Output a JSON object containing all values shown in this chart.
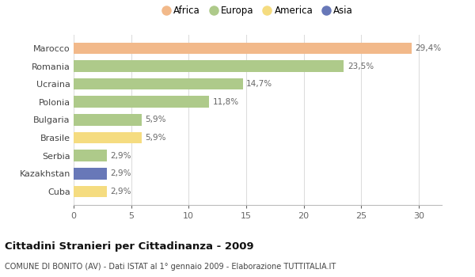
{
  "categories": [
    "Marocco",
    "Romania",
    "Ucraina",
    "Polonia",
    "Bulgaria",
    "Brasile",
    "Serbia",
    "Kazakhstan",
    "Cuba"
  ],
  "values": [
    29.4,
    23.5,
    14.7,
    11.8,
    5.9,
    5.9,
    2.9,
    2.9,
    2.9
  ],
  "labels": [
    "29,4%",
    "23,5%",
    "14,7%",
    "11,8%",
    "5,9%",
    "5,9%",
    "2,9%",
    "2,9%",
    "2,9%"
  ],
  "colors": [
    "#F2B98A",
    "#AECA8A",
    "#AECA8A",
    "#AECA8A",
    "#AECA8A",
    "#F5DC80",
    "#AECA8A",
    "#6878B8",
    "#F5DC80"
  ],
  "legend": [
    {
      "label": "Africa",
      "color": "#F2B98A"
    },
    {
      "label": "Europa",
      "color": "#AECA8A"
    },
    {
      "label": "America",
      "color": "#F5DC80"
    },
    {
      "label": "Asia",
      "color": "#6878B8"
    }
  ],
  "xlim": [
    0,
    32
  ],
  "xticks": [
    0,
    5,
    10,
    15,
    20,
    25,
    30
  ],
  "title": "Cittadini Stranieri per Cittadinanza - 2009",
  "subtitle": "COMUNE DI BONITO (AV) - Dati ISTAT al 1° gennaio 2009 - Elaborazione TUTTITALIA.IT",
  "bg_color": "#ffffff",
  "plot_bg": "#ffffff",
  "grid_color": "#dddddd",
  "label_color": "#666666",
  "bar_height": 0.65
}
